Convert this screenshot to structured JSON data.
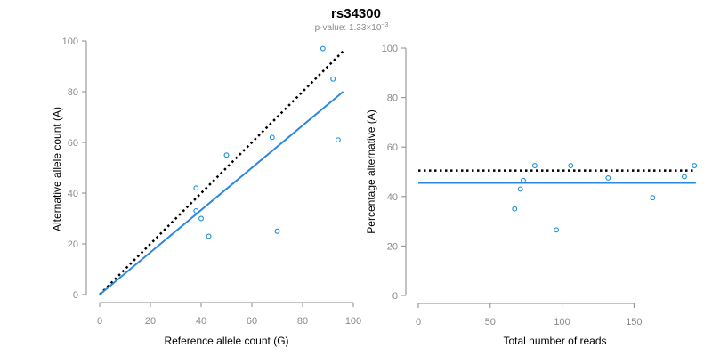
{
  "header": {
    "title": "rs34300",
    "pvalue_prefix": "p-value: 1.33×10",
    "pvalue_exponent": "−3"
  },
  "colors": {
    "point": "#1a8fd6",
    "fit_line": "#2b87e0",
    "reference_line": "#000000",
    "axis": "#8a8a8a"
  },
  "chart_data": [
    {
      "type": "scatter",
      "name": "allele-count-plot",
      "xlabel": "Reference allele count (G)",
      "ylabel": "Alternative allele count (A)",
      "xlim": [
        0,
        100
      ],
      "ylim": [
        0,
        100
      ],
      "xticks": [
        0,
        20,
        40,
        60,
        80,
        100
      ],
      "yticks": [
        0,
        20,
        40,
        60,
        80,
        100
      ],
      "points": [
        {
          "x": 38,
          "y": 42
        },
        {
          "x": 38,
          "y": 33
        },
        {
          "x": 40,
          "y": 30
        },
        {
          "x": 43,
          "y": 23
        },
        {
          "x": 50,
          "y": 55
        },
        {
          "x": 68,
          "y": 62
        },
        {
          "x": 70,
          "y": 25
        },
        {
          "x": 88,
          "y": 97
        },
        {
          "x": 92,
          "y": 85
        },
        {
          "x": 94,
          "y": 61
        }
      ],
      "fit_line": {
        "x": [
          0,
          96
        ],
        "y": [
          0,
          80
        ],
        "style": "solid"
      },
      "reference_line": {
        "x": [
          0,
          96
        ],
        "y": [
          0,
          96
        ],
        "style": "dotted"
      }
    },
    {
      "type": "scatter",
      "name": "percentage-plot",
      "xlabel": "Total number of reads",
      "ylabel": "Percentage alternative (A)",
      "xlim": [
        0,
        190
      ],
      "ylim": [
        0,
        100
      ],
      "xticks": [
        0,
        50,
        100,
        150
      ],
      "yticks": [
        0,
        20,
        40,
        60,
        80,
        100
      ],
      "points": [
        {
          "x": 67,
          "y": 35
        },
        {
          "x": 71,
          "y": 43
        },
        {
          "x": 73,
          "y": 46.5
        },
        {
          "x": 81,
          "y": 52.5
        },
        {
          "x": 96,
          "y": 26.5
        },
        {
          "x": 106,
          "y": 52.5
        },
        {
          "x": 132,
          "y": 47.5
        },
        {
          "x": 163,
          "y": 39.5
        },
        {
          "x": 185,
          "y": 48
        },
        {
          "x": 192,
          "y": 52.5
        }
      ],
      "fit_line": {
        "x": [
          0,
          193
        ],
        "y": [
          45.5,
          45.5
        ],
        "style": "solid"
      },
      "reference_line": {
        "x": [
          0,
          193
        ],
        "y": [
          50.5,
          50.5
        ],
        "style": "dotted"
      }
    }
  ]
}
